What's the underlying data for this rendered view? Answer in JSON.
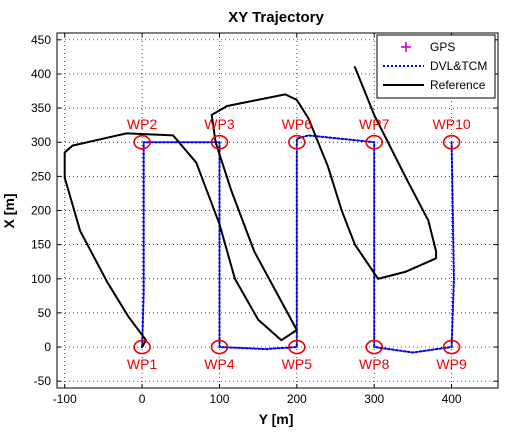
{
  "chart_data": {
    "type": "line",
    "title": "XY Trajectory",
    "xlabel": "Y [m]",
    "ylabel": "X [m]",
    "xlim": [
      -110,
      460
    ],
    "ylim": [
      -60,
      460
    ],
    "xticks": [
      -100,
      0,
      100,
      200,
      300,
      400
    ],
    "yticks": [
      -50,
      0,
      50,
      100,
      150,
      200,
      250,
      300,
      350,
      400,
      450
    ],
    "grid": true,
    "legend_position": "top-right",
    "series": [
      {
        "name": "GPS",
        "style": "marker",
        "marker": "+",
        "color": "#cc00cc",
        "points": []
      },
      {
        "name": "DVL&TCM",
        "style": "dotted",
        "color": "#0000ee",
        "points": [
          [
            0,
            0
          ],
          [
            2,
            80
          ],
          [
            2,
            200
          ],
          [
            2,
            300
          ],
          [
            100,
            300
          ],
          [
            100,
            200
          ],
          [
            100,
            100
          ],
          [
            100,
            0
          ],
          [
            160,
            -3
          ],
          [
            200,
            0
          ],
          [
            200,
            150
          ],
          [
            200,
            305
          ],
          [
            215,
            310
          ],
          [
            300,
            300
          ],
          [
            300,
            150
          ],
          [
            300,
            0
          ],
          [
            350,
            -8
          ],
          [
            400,
            0
          ],
          [
            403,
            100
          ],
          [
            400,
            300
          ]
        ]
      },
      {
        "name": "Reference",
        "style": "solid",
        "color": "#000000",
        "points": [
          [
            0,
            0
          ],
          [
            5,
            10
          ],
          [
            -18,
            45
          ],
          [
            -45,
            95
          ],
          [
            -80,
            170
          ],
          [
            -100,
            248
          ],
          [
            -100,
            285
          ],
          [
            -90,
            295
          ],
          [
            -40,
            308
          ],
          [
            -20,
            313
          ],
          [
            40,
            310
          ],
          [
            70,
            270
          ],
          [
            100,
            180
          ],
          [
            120,
            100
          ],
          [
            150,
            40
          ],
          [
            180,
            10
          ],
          [
            200,
            25
          ],
          [
            145,
            140
          ],
          [
            115,
            230
          ],
          [
            95,
            300
          ],
          [
            90,
            340
          ],
          [
            110,
            353
          ],
          [
            185,
            370
          ],
          [
            200,
            362
          ],
          [
            215,
            335
          ],
          [
            240,
            265
          ],
          [
            258,
            200
          ],
          [
            275,
            150
          ],
          [
            305,
            100
          ],
          [
            340,
            110
          ],
          [
            380,
            130
          ],
          [
            380,
            140
          ],
          [
            370,
            185
          ],
          [
            340,
            250
          ],
          [
            300,
            340
          ],
          [
            275,
            410
          ]
        ]
      }
    ],
    "waypoints": [
      {
        "label": "WP1",
        "y": 0,
        "x": 0,
        "label_pos": "below"
      },
      {
        "label": "WP2",
        "y": 0,
        "x": 300,
        "label_pos": "above"
      },
      {
        "label": "WP3",
        "y": 100,
        "x": 300,
        "label_pos": "above"
      },
      {
        "label": "WP4",
        "y": 100,
        "x": 0,
        "label_pos": "below"
      },
      {
        "label": "WP5",
        "y": 200,
        "x": 0,
        "label_pos": "below"
      },
      {
        "label": "WP6",
        "y": 200,
        "x": 300,
        "label_pos": "above"
      },
      {
        "label": "WP7",
        "y": 300,
        "x": 300,
        "label_pos": "above"
      },
      {
        "label": "WP8",
        "y": 300,
        "x": 0,
        "label_pos": "below"
      },
      {
        "label": "WP9",
        "y": 400,
        "x": 0,
        "label_pos": "below"
      },
      {
        "label": "WP10",
        "y": 400,
        "x": 300,
        "label_pos": "above"
      }
    ],
    "waypoint_color": "#ee0000"
  }
}
